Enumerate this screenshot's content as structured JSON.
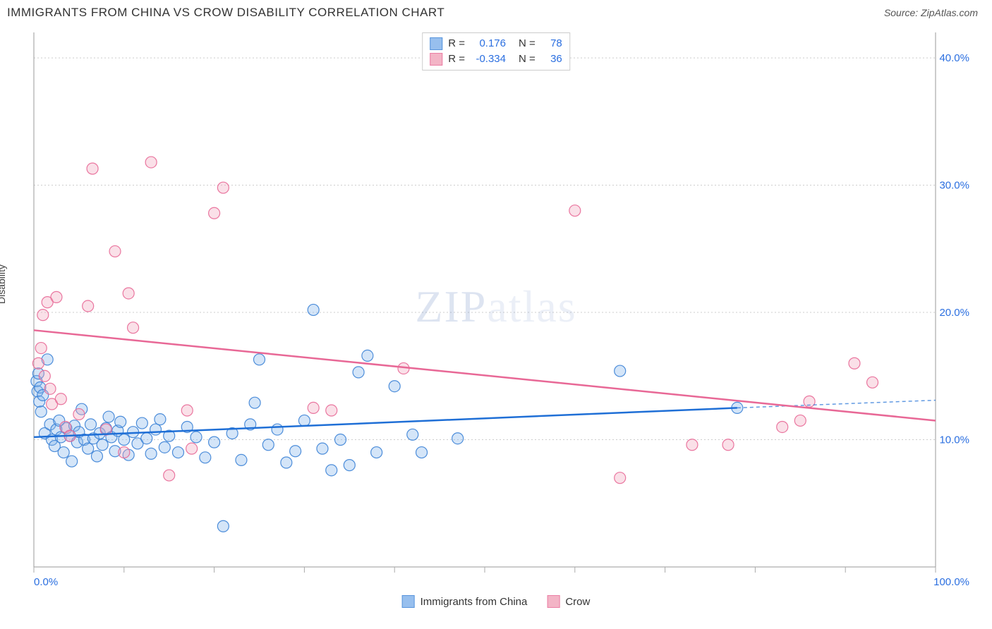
{
  "header": {
    "title": "IMMIGRANTS FROM CHINA VS CROW DISABILITY CORRELATION CHART",
    "source": "Source: ZipAtlas.com"
  },
  "watermark": {
    "part1": "ZIP",
    "part2": "atlas"
  },
  "chart": {
    "type": "scatter",
    "ylabel": "Disability",
    "background_color": "#ffffff",
    "grid_color": "#cccccc",
    "border_color": "#999999",
    "xlim": [
      0,
      100
    ],
    "ylim": [
      0,
      42
    ],
    "xtick_positions": [
      0,
      10,
      20,
      30,
      40,
      50,
      60,
      70,
      80,
      90,
      100
    ],
    "xtick_labels_shown": {
      "0": "0.0%",
      "100": "100.0%"
    },
    "ytick_positions": [
      10,
      20,
      30,
      40
    ],
    "ytick_labels": [
      "10.0%",
      "20.0%",
      "30.0%",
      "40.0%"
    ],
    "axis_label_color": "#2b6fe0",
    "marker_radius": 8,
    "marker_fill_opacity": 0.35,
    "marker_stroke_opacity": 0.9,
    "marker_stroke_width": 1.2,
    "trendline_width": 2.5,
    "series": [
      {
        "name": "Immigrants from China",
        "color_fill": "#85b5ec",
        "color_stroke": "#3b82d6",
        "trendline_color": "#1f6fd6",
        "r": "0.176",
        "n": "78",
        "trendline": {
          "x1": 0,
          "y1": 10.2,
          "x2": 78,
          "y2": 12.5,
          "dash_after_x": 78,
          "dash_x2": 100,
          "dash_y2": 13.1
        },
        "points": [
          [
            0.3,
            14.6
          ],
          [
            0.4,
            13.8
          ],
          [
            0.5,
            15.2
          ],
          [
            0.6,
            13.0
          ],
          [
            0.7,
            14.1
          ],
          [
            0.8,
            12.2
          ],
          [
            1.0,
            13.5
          ],
          [
            1.5,
            16.3
          ],
          [
            1.2,
            10.5
          ],
          [
            1.8,
            11.2
          ],
          [
            2.0,
            10.0
          ],
          [
            2.3,
            9.5
          ],
          [
            2.5,
            10.8
          ],
          [
            2.8,
            11.5
          ],
          [
            3.0,
            10.2
          ],
          [
            3.3,
            9.0
          ],
          [
            3.6,
            10.9
          ],
          [
            4.0,
            10.3
          ],
          [
            4.2,
            8.3
          ],
          [
            4.5,
            11.1
          ],
          [
            4.8,
            9.8
          ],
          [
            5.0,
            10.6
          ],
          [
            5.3,
            12.4
          ],
          [
            5.6,
            10.0
          ],
          [
            6.0,
            9.3
          ],
          [
            6.3,
            11.2
          ],
          [
            6.6,
            10.1
          ],
          [
            7.0,
            8.7
          ],
          [
            7.3,
            10.5
          ],
          [
            7.6,
            9.6
          ],
          [
            8.0,
            10.9
          ],
          [
            8.3,
            11.8
          ],
          [
            8.6,
            10.2
          ],
          [
            9.0,
            9.1
          ],
          [
            9.3,
            10.7
          ],
          [
            9.6,
            11.4
          ],
          [
            10.0,
            10.0
          ],
          [
            10.5,
            8.8
          ],
          [
            11.0,
            10.6
          ],
          [
            11.5,
            9.7
          ],
          [
            12.0,
            11.3
          ],
          [
            12.5,
            10.1
          ],
          [
            13.0,
            8.9
          ],
          [
            13.5,
            10.8
          ],
          [
            14.0,
            11.6
          ],
          [
            14.5,
            9.4
          ],
          [
            15.0,
            10.3
          ],
          [
            16.0,
            9.0
          ],
          [
            17.0,
            11.0
          ],
          [
            18.0,
            10.2
          ],
          [
            19.0,
            8.6
          ],
          [
            20.0,
            9.8
          ],
          [
            21.0,
            3.2
          ],
          [
            22.0,
            10.5
          ],
          [
            23.0,
            8.4
          ],
          [
            24.0,
            11.2
          ],
          [
            24.5,
            12.9
          ],
          [
            25.0,
            16.3
          ],
          [
            26.0,
            9.6
          ],
          [
            27.0,
            10.8
          ],
          [
            28.0,
            8.2
          ],
          [
            29.0,
            9.1
          ],
          [
            30.0,
            11.5
          ],
          [
            31.0,
            20.2
          ],
          [
            32.0,
            9.3
          ],
          [
            33.0,
            7.6
          ],
          [
            34.0,
            10.0
          ],
          [
            35.0,
            8.0
          ],
          [
            36.0,
            15.3
          ],
          [
            37.0,
            16.6
          ],
          [
            38.0,
            9.0
          ],
          [
            40.0,
            14.2
          ],
          [
            42.0,
            10.4
          ],
          [
            43.0,
            9.0
          ],
          [
            47.0,
            10.1
          ],
          [
            65.0,
            15.4
          ],
          [
            78.0,
            12.5
          ]
        ]
      },
      {
        "name": "Crow",
        "color_fill": "#f2a7bd",
        "color_stroke": "#e86896",
        "trendline_color": "#e86896",
        "r": "-0.334",
        "n": "36",
        "trendline": {
          "x1": 0,
          "y1": 18.6,
          "x2": 100,
          "y2": 11.5
        },
        "points": [
          [
            0.5,
            16.0
          ],
          [
            0.8,
            17.2
          ],
          [
            1.0,
            19.8
          ],
          [
            1.2,
            15.0
          ],
          [
            1.5,
            20.8
          ],
          [
            1.8,
            14.0
          ],
          [
            2.0,
            12.8
          ],
          [
            2.5,
            21.2
          ],
          [
            3.0,
            13.2
          ],
          [
            3.5,
            11.0
          ],
          [
            4.0,
            10.3
          ],
          [
            5.0,
            12.0
          ],
          [
            6.0,
            20.5
          ],
          [
            6.5,
            31.3
          ],
          [
            8.0,
            10.8
          ],
          [
            9.0,
            24.8
          ],
          [
            10.0,
            9.0
          ],
          [
            10.5,
            21.5
          ],
          [
            11.0,
            18.8
          ],
          [
            13.0,
            31.8
          ],
          [
            15.0,
            7.2
          ],
          [
            17.0,
            12.3
          ],
          [
            17.5,
            9.3
          ],
          [
            20.0,
            27.8
          ],
          [
            21.0,
            29.8
          ],
          [
            31.0,
            12.5
          ],
          [
            33.0,
            12.3
          ],
          [
            41.0,
            15.6
          ],
          [
            60.0,
            28.0
          ],
          [
            65.0,
            7.0
          ],
          [
            73.0,
            9.6
          ],
          [
            77.0,
            9.6
          ],
          [
            83.0,
            11.0
          ],
          [
            85.0,
            11.5
          ],
          [
            86.0,
            13.0
          ],
          [
            91.0,
            16.0
          ],
          [
            93.0,
            14.5
          ]
        ]
      }
    ]
  },
  "legend_bottom": {
    "series1_label": "Immigrants from China",
    "series2_label": "Crow"
  },
  "legend_top": {
    "r_label": "R =",
    "n_label": "N ="
  }
}
